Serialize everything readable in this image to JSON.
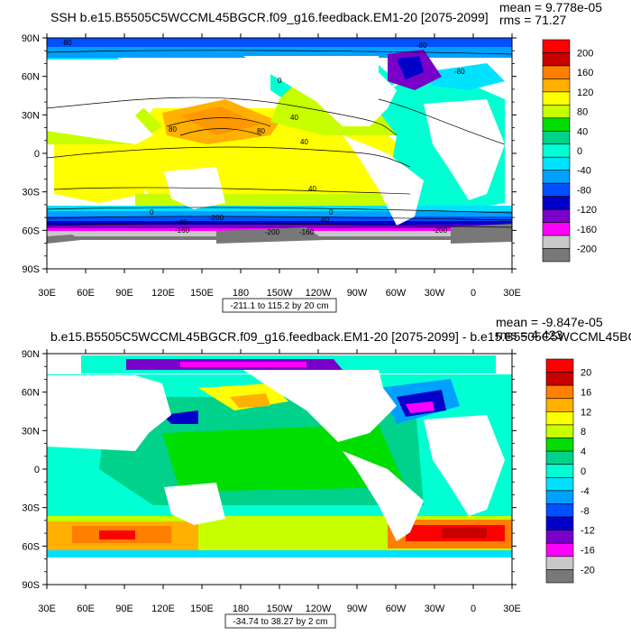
{
  "panels": [
    {
      "title": "SSH b.e15.B5505C5WCCML45BGCR.f09_g16.feedback.EM1-20 [2075-2099]",
      "mean_text": "mean = 9.778e-05",
      "rms_text": "rms = 71.27",
      "range_text": "-211.1 to 115.2 by 20 cm",
      "lat_labels": [
        "90N",
        "60N",
        "30N",
        "0",
        "30S",
        "60S",
        "90S"
      ],
      "lon_labels": [
        "30E",
        "60E",
        "90E",
        "120E",
        "150E",
        "180",
        "150W",
        "120W",
        "90W",
        "60W",
        "30W",
        "0",
        "30E"
      ],
      "colorbar_labels": [
        "200",
        "160",
        "120",
        "80",
        "40",
        "0",
        "-40",
        "-80",
        "-120",
        "-160",
        "-200"
      ],
      "colorbar_colors": [
        "#ff0000",
        "#c80000",
        "#ff7f00",
        "#ffb000",
        "#ffff00",
        "#c8ff00",
        "#00dd00",
        "#00d28c",
        "#00ffd2",
        "#00e1ff",
        "#00a0ff",
        "#0050ff",
        "#0000c8",
        "#7800c8",
        "#ff00ff",
        "#c8c8c8",
        "#787878"
      ],
      "contour_labels": [
        "-80",
        "-80",
        "-80",
        "0",
        "40",
        "80",
        "80",
        "40",
        "40",
        "0",
        "0",
        "40",
        "-40",
        "-160",
        "-200",
        "-200",
        "-160",
        "-200"
      ]
    },
    {
      "title": "b.e15.B5505C5WCCML45BGCR.f09_g16.feedback.EM1-20 [2075-2099] - b.e15.B5505C5WCCML45BGC",
      "mean_text": "mean = -9.847e-05",
      "rms_text": "rms = 4.423",
      "range_text": "-34.74 to 38.27 by 2 cm",
      "lat_labels": [
        "90N",
        "60N",
        "30N",
        "0",
        "30S",
        "60S",
        "90S"
      ],
      "lon_labels": [
        "30E",
        "60E",
        "90E",
        "120E",
        "150E",
        "180",
        "150W",
        "120W",
        "90W",
        "60W",
        "30W",
        "0",
        "30E"
      ],
      "colorbar_labels": [
        "20",
        "16",
        "12",
        "8",
        "4",
        "0",
        "-4",
        "-8",
        "-12",
        "-16",
        "-20"
      ],
      "colorbar_colors": [
        "#ff0000",
        "#c80000",
        "#ff7f00",
        "#ffb000",
        "#ffff00",
        "#c8ff00",
        "#00dd00",
        "#00d28c",
        "#00ffd2",
        "#00e1ff",
        "#00a0ff",
        "#0050ff",
        "#0000c8",
        "#7800c8",
        "#ff00ff",
        "#c8c8c8",
        "#787878"
      ]
    }
  ]
}
